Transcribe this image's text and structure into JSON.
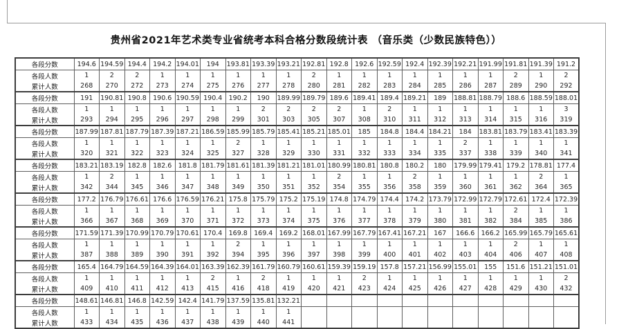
{
  "title": "贵州省2021年艺术类专业省统考本科合格分数段统计表 （音乐类（少数民族特色））",
  "table": {
    "row_labels": {
      "score": "各段分数",
      "count": "各段人数",
      "cumulative": "累计人数"
    },
    "groups": [
      {
        "scores": [
          194.6,
          194.59,
          194.4,
          194.2,
          194.01,
          194,
          193.81,
          193.39,
          193.21,
          192.81,
          192.8,
          192.6,
          192.59,
          192.4,
          192.39,
          192.21,
          191.99,
          191.81,
          191.39,
          191.2
        ],
        "counts": [
          1,
          2,
          2,
          1,
          1,
          1,
          1,
          1,
          1,
          2,
          1,
          1,
          1,
          1,
          1,
          1,
          1,
          2,
          1,
          2
        ],
        "cumulative": [
          268,
          270,
          272,
          273,
          274,
          275,
          276,
          277,
          278,
          280,
          281,
          282,
          283,
          284,
          285,
          286,
          287,
          289,
          290,
          292
        ]
      },
      {
        "scores": [
          191,
          190.81,
          190.8,
          190.6,
          190.59,
          190.4,
          190.2,
          190,
          189.99,
          189.79,
          189.6,
          189.41,
          189.4,
          189.21,
          189,
          188.81,
          188.79,
          188.6,
          188.59,
          188.01
        ],
        "counts": [
          1,
          1,
          1,
          1,
          1,
          1,
          1,
          2,
          2,
          2,
          2,
          1,
          2,
          1,
          1,
          1,
          1,
          1,
          1,
          3
        ],
        "cumulative": [
          293,
          294,
          295,
          296,
          297,
          298,
          299,
          301,
          303,
          305,
          307,
          308,
          310,
          311,
          312,
          313,
          314,
          315,
          316,
          319
        ]
      },
      {
        "scores": [
          187.99,
          187.81,
          187.79,
          187.39,
          187.21,
          186.59,
          185.99,
          185.79,
          185.41,
          185.21,
          185.01,
          185,
          184.8,
          184.4,
          184.21,
          184,
          183.81,
          183.79,
          183.41,
          183.39
        ],
        "counts": [
          1,
          1,
          1,
          1,
          1,
          1,
          2,
          1,
          1,
          1,
          1,
          1,
          1,
          1,
          1,
          2,
          1,
          1,
          1,
          1
        ],
        "cumulative": [
          320,
          321,
          322,
          323,
          324,
          325,
          327,
          328,
          329,
          330,
          331,
          332,
          333,
          334,
          335,
          337,
          338,
          339,
          340,
          341
        ]
      },
      {
        "scores": [
          183.21,
          183.19,
          182.8,
          182.6,
          181.8,
          181.79,
          181.61,
          181.39,
          181.21,
          181.01,
          180.99,
          180.81,
          180.8,
          180.2,
          180,
          179.99,
          179.41,
          179.2,
          178.81,
          177.4
        ],
        "counts": [
          1,
          2,
          1,
          1,
          1,
          1,
          1,
          1,
          1,
          1,
          2,
          1,
          1,
          2,
          1,
          1,
          1,
          1,
          2,
          1
        ],
        "cumulative": [
          342,
          344,
          345,
          346,
          347,
          348,
          349,
          350,
          351,
          352,
          354,
          355,
          356,
          358,
          359,
          360,
          361,
          362,
          364,
          365
        ]
      },
      {
        "scores": [
          177.2,
          176.79,
          176.61,
          176.6,
          176.59,
          176.21,
          175.8,
          175.79,
          175.2,
          175.19,
          174.8,
          174.79,
          174.4,
          174.2,
          173.79,
          172.99,
          172.79,
          172.61,
          172.4,
          172.39
        ],
        "counts": [
          1,
          1,
          1,
          1,
          1,
          1,
          1,
          1,
          1,
          1,
          1,
          1,
          1,
          1,
          1,
          1,
          1,
          2,
          1,
          1
        ],
        "cumulative": [
          366,
          367,
          368,
          369,
          370,
          371,
          372,
          373,
          374,
          375,
          376,
          377,
          378,
          379,
          380,
          381,
          382,
          384,
          385,
          386
        ]
      },
      {
        "scores": [
          171.59,
          171.39,
          170.99,
          170.79,
          170.61,
          170.4,
          169.8,
          169.4,
          169.2,
          168.01,
          167.99,
          167.79,
          167.41,
          167.21,
          167,
          166.6,
          166.2,
          165.99,
          165.79,
          165.61
        ],
        "counts": [
          1,
          1,
          1,
          1,
          1,
          1,
          2,
          1,
          1,
          1,
          1,
          1,
          1,
          1,
          1,
          1,
          1,
          2,
          1,
          1
        ],
        "cumulative": [
          387,
          388,
          389,
          390,
          391,
          392,
          394,
          395,
          396,
          397,
          398,
          399,
          400,
          401,
          402,
          403,
          404,
          406,
          407,
          408
        ]
      },
      {
        "scores": [
          165.4,
          164.79,
          164.59,
          164.39,
          164.01,
          163.39,
          162.39,
          161.79,
          160.79,
          160.61,
          159.39,
          159.19,
          157.8,
          157.21,
          156.99,
          155.01,
          155,
          151.6,
          151.21,
          151.01
        ],
        "counts": [
          1,
          1,
          1,
          1,
          1,
          2,
          1,
          2,
          1,
          1,
          1,
          2,
          1,
          1,
          1,
          1,
          1,
          1,
          1,
          2
        ],
        "cumulative": [
          409,
          410,
          411,
          412,
          413,
          415,
          416,
          418,
          419,
          420,
          421,
          423,
          424,
          425,
          426,
          427,
          428,
          429,
          430,
          432
        ]
      },
      {
        "scores": [
          148.61,
          146.81,
          146.8,
          142.59,
          142.4,
          141.79,
          137.59,
          135.81,
          132.21,
          "",
          "",
          "",
          "",
          "",
          "",
          "",
          "",
          "",
          "",
          ""
        ],
        "counts": [
          1,
          1,
          1,
          1,
          1,
          1,
          1,
          1,
          1,
          "",
          "",
          "",
          "",
          "",
          "",
          "",
          "",
          "",
          "",
          ""
        ],
        "cumulative": [
          433,
          434,
          435,
          436,
          437,
          438,
          439,
          440,
          441,
          "",
          "",
          "",
          "",
          "",
          "",
          "",
          "",
          "",
          "",
          ""
        ]
      }
    ]
  }
}
